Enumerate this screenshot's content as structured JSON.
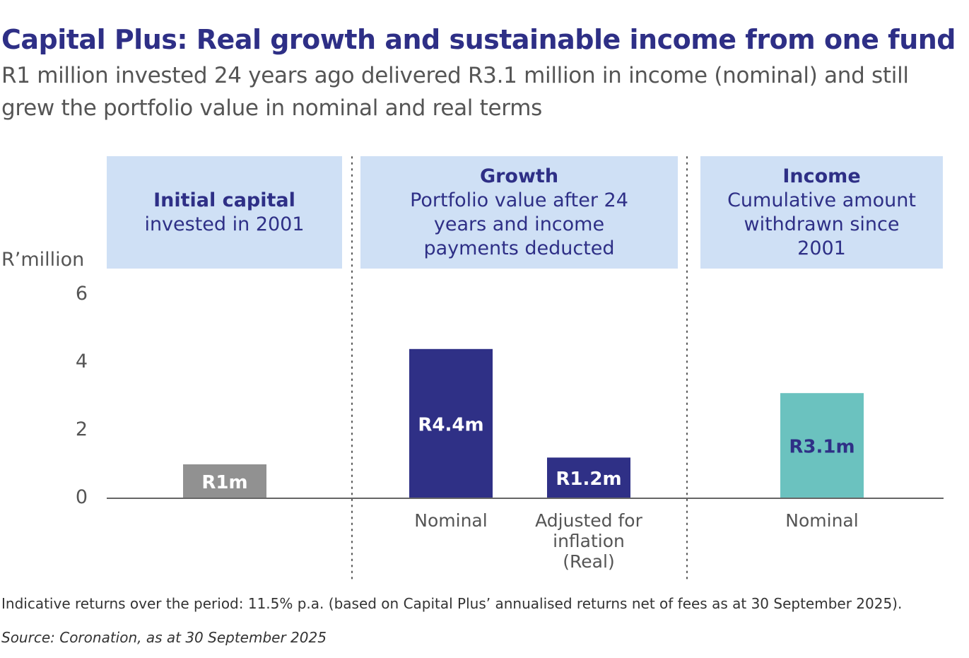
{
  "chart_data": {
    "type": "bar",
    "title": "Capital Plus: Real growth and sustainable income from one fund",
    "subtitle": "R1 million invested 24 years ago delivered R3.1 million in income (nominal) and still grew the portfolio value in nominal and real terms",
    "ylabel": "R’million",
    "ylim": [
      0,
      6
    ],
    "yticks": [
      "0",
      "2",
      "4",
      "6"
    ],
    "grid": false,
    "groups": [
      {
        "title": "Initial capital",
        "subtitle": "invested in 2001"
      },
      {
        "title": "Growth",
        "subtitle": "Portfolio value after 24 years and income payments deducted"
      },
      {
        "title": "Income",
        "subtitle": "Cumulative amount withdrawn since 2001"
      }
    ],
    "bars": [
      {
        "group": 0,
        "category": "",
        "value": 1.0,
        "label": "R1m",
        "color": "#919191",
        "label_color": "#ffffff"
      },
      {
        "group": 1,
        "category": "Nominal",
        "value": 4.4,
        "label": "R4.4m",
        "color": "#2f3086",
        "label_color": "#ffffff"
      },
      {
        "group": 1,
        "category": "Adjusted for inflation (Real)",
        "value": 1.2,
        "label": "R1.2m",
        "color": "#2f3086",
        "label_color": "#ffffff"
      },
      {
        "group": 2,
        "category": "Nominal",
        "value": 3.1,
        "label": "R3.1m",
        "color": "#6bc2bf",
        "label_color": "#2f3086"
      }
    ],
    "note": "Indicative returns over the period: 11.5% p.a. (based on Capital Plus’ annualised returns net of fees as at 30 September 2025).",
    "source": "Source: Coronation, as at 30 September 2025"
  },
  "colors": {
    "title": "#2e2f86",
    "panel": "#cfe0f5"
  }
}
